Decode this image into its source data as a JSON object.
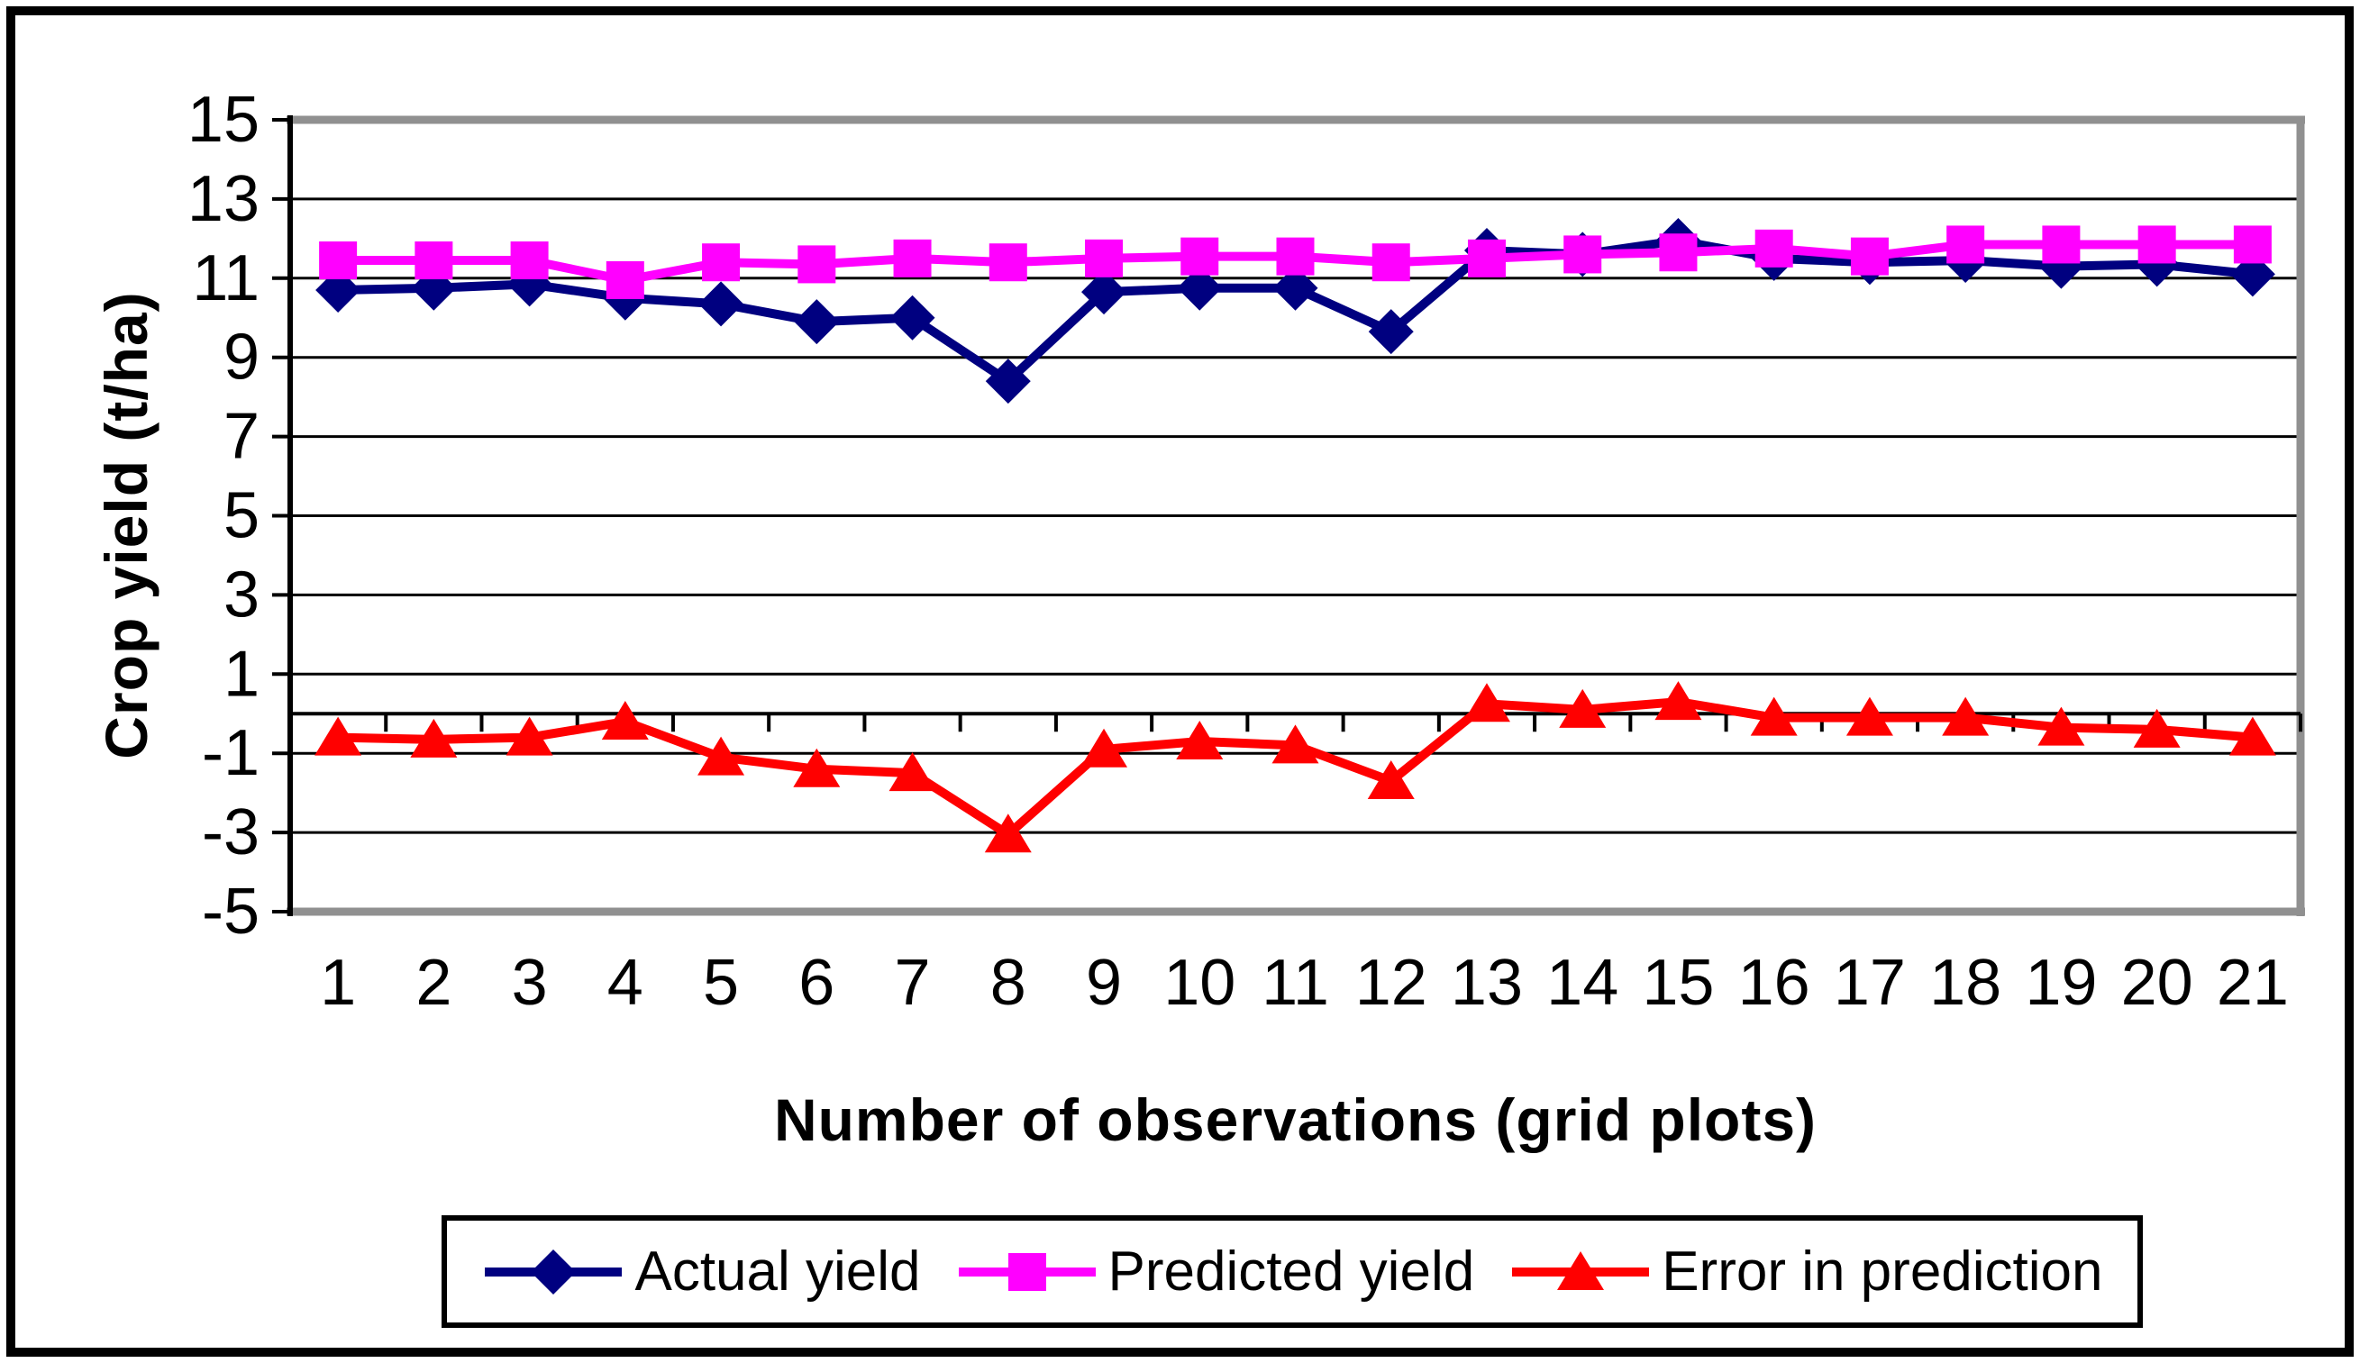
{
  "figure": {
    "background": "#ffffff",
    "outer_border_color": "#000000",
    "plot_border_color": "#909090",
    "gridline_color": "#000000"
  },
  "chart_data": {
    "type": "line",
    "title": "",
    "xlabel": "Number of observations (grid plots)",
    "ylabel": "Crop yield (t/ha)",
    "x": [
      1,
      2,
      3,
      4,
      5,
      6,
      7,
      8,
      9,
      10,
      11,
      12,
      13,
      14,
      15,
      16,
      17,
      18,
      19,
      20,
      21
    ],
    "ylim": [
      -5,
      15
    ],
    "yticks": [
      15,
      13,
      11,
      9,
      7,
      5,
      3,
      1,
      -1,
      -3,
      -5
    ],
    "grid": true,
    "legend_position": "bottom",
    "series": [
      {
        "name": "Actual yield",
        "color": "#000080",
        "marker": "diamond",
        "values": [
          10.7,
          10.75,
          10.85,
          10.5,
          10.35,
          9.9,
          10.0,
          8.4,
          10.65,
          10.75,
          10.75,
          9.65,
          11.7,
          11.6,
          11.95,
          11.5,
          11.4,
          11.45,
          11.3,
          11.35,
          11.1
        ]
      },
      {
        "name": "Predicted yield",
        "color": "#FF00FF",
        "marker": "square",
        "values": [
          11.45,
          11.45,
          11.45,
          10.95,
          11.4,
          11.35,
          11.5,
          11.4,
          11.5,
          11.55,
          11.55,
          11.4,
          11.5,
          11.6,
          11.65,
          11.75,
          11.55,
          11.85,
          11.85,
          11.85,
          11.85
        ]
      },
      {
        "name": "Error in prediction",
        "color": "#FF0000",
        "marker": "triangle",
        "values": [
          -0.6,
          -0.65,
          -0.6,
          -0.2,
          -1.1,
          -1.4,
          -1.5,
          -3.05,
          -0.9,
          -0.7,
          -0.8,
          -1.7,
          0.25,
          0.1,
          0.3,
          -0.1,
          -0.1,
          -0.1,
          -0.35,
          -0.4,
          -0.6
        ]
      }
    ]
  }
}
